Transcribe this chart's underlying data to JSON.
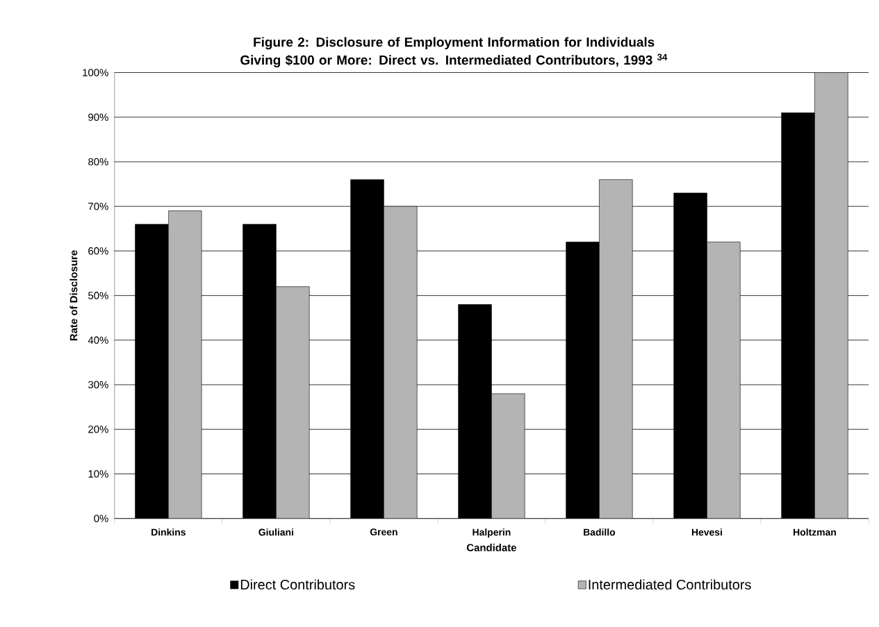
{
  "chart_data": {
    "type": "bar",
    "title": "Figure 2: Disclosure of Employment Information for Individuals Giving $100 or More: Direct vs. Intermediated Contributors, 1993 $^{34}$",
    "xlabel": "Candidate",
    "ylabel": "Rate of Disclosure",
    "categories": [
      "Dinkins",
      "Giuliani",
      "Green",
      "Halperin",
      "Badillo",
      "Hevesi",
      "Holtzman"
    ],
    "series": [
      {
        "name": "Direct Contributors",
        "color": "#000000",
        "values": [
          66,
          66,
          76,
          48,
          62,
          73,
          91
        ]
      },
      {
        "name": "Intermediated Contributors",
        "color": "#b4b4b4",
        "values": [
          69,
          52,
          70,
          28,
          76,
          62,
          100
        ]
      }
    ],
    "ylim": [
      0,
      100
    ],
    "yticks": [
      {
        "value": 0,
        "label": "0%"
      },
      {
        "value": 10,
        "label": "10%"
      },
      {
        "value": 20,
        "label": "20%"
      },
      {
        "value": 30,
        "label": "30%"
      },
      {
        "value": 40,
        "label": "40%"
      },
      {
        "value": 50,
        "label": "50%"
      },
      {
        "value": 60,
        "label": "60%"
      },
      {
        "value": 70,
        "label": "70%"
      },
      {
        "value": 80,
        "label": "80%"
      },
      {
        "value": 90,
        "label": "90%"
      },
      {
        "value": 100,
        "label": "100%"
      }
    ],
    "grid": "y",
    "legend": "bottom"
  }
}
